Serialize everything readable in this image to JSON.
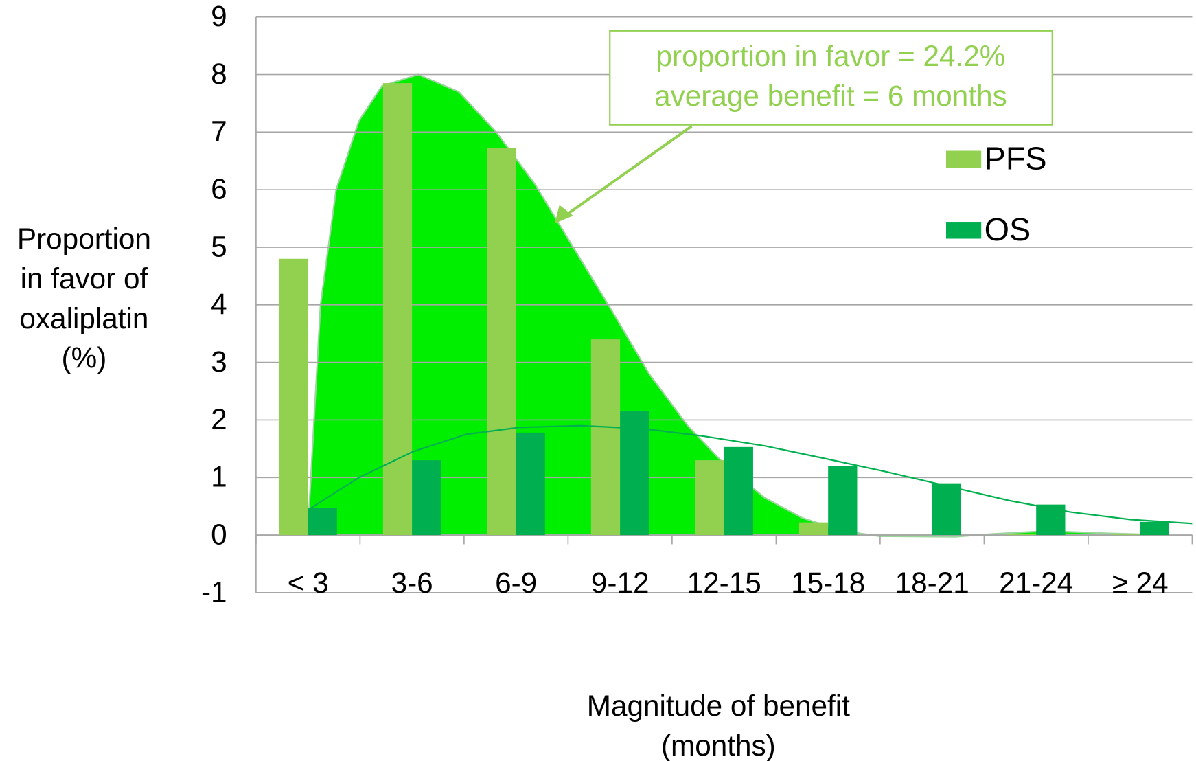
{
  "chart_data": {
    "type": "bar",
    "y_label": [
      "Proportion",
      "in favor of",
      "oxaliplatin",
      "(%)"
    ],
    "x_label": [
      "Magnitude of benefit",
      "(months)"
    ],
    "annotation": [
      "proportion in favor = 24.2%",
      "average benefit  = 6 months"
    ],
    "annotation_color": "#92d050",
    "categories": [
      "< 3",
      "3-6",
      "6-9",
      "9-12",
      "12-15",
      "15-18",
      "18-21",
      "21-24",
      "≥ 24"
    ],
    "series": [
      {
        "name": "PFS",
        "color": "#92d050",
        "values": [
          4.8,
          7.85,
          6.72,
          3.4,
          1.3,
          0.22,
          0,
          0.02,
          0.01
        ]
      },
      {
        "name": "OS",
        "color": "#00b050",
        "values": [
          0.47,
          1.3,
          1.78,
          2.15,
          1.53,
          1.2,
          0.9,
          0.53,
          0.23
        ]
      }
    ],
    "curves": [
      {
        "color": "#00ee00",
        "fill": true,
        "x": [
          0.01,
          0.12,
          0.27,
          0.49,
          0.71,
          1.06,
          1.45,
          1.81,
          2.18,
          2.55,
          2.92,
          3.28,
          3.65,
          4.02,
          4.39,
          4.75,
          5.12,
          5.49,
          6.22,
          6.59,
          7.1,
          7.69,
          8.28
        ],
        "values": [
          0.45,
          4.0,
          6.0,
          7.2,
          7.8,
          8.0,
          7.7,
          7.0,
          6.1,
          5.0,
          3.9,
          2.8,
          1.9,
          1.2,
          0.65,
          0.3,
          0.08,
          -0.02,
          -0.03,
          0.02,
          0.07,
          0.03,
          0
        ]
      },
      {
        "color": "#00b050",
        "fill": false,
        "x": [
          0.01,
          0.49,
          1.01,
          1.52,
          2.03,
          2.62,
          3.21,
          3.8,
          4.39,
          4.97,
          5.56,
          6.15,
          6.74,
          7.33,
          7.91,
          8.5
        ],
        "values": [
          0.45,
          1.0,
          1.45,
          1.75,
          1.87,
          1.9,
          1.85,
          1.72,
          1.55,
          1.33,
          1.1,
          0.85,
          0.6,
          0.4,
          0.27,
          0.2
        ]
      }
    ],
    "ylim": [
      -1,
      9
    ],
    "yticks": [
      -1,
      0,
      1,
      2,
      3,
      4,
      5,
      6,
      7,
      8,
      9
    ],
    "grid": true
  }
}
